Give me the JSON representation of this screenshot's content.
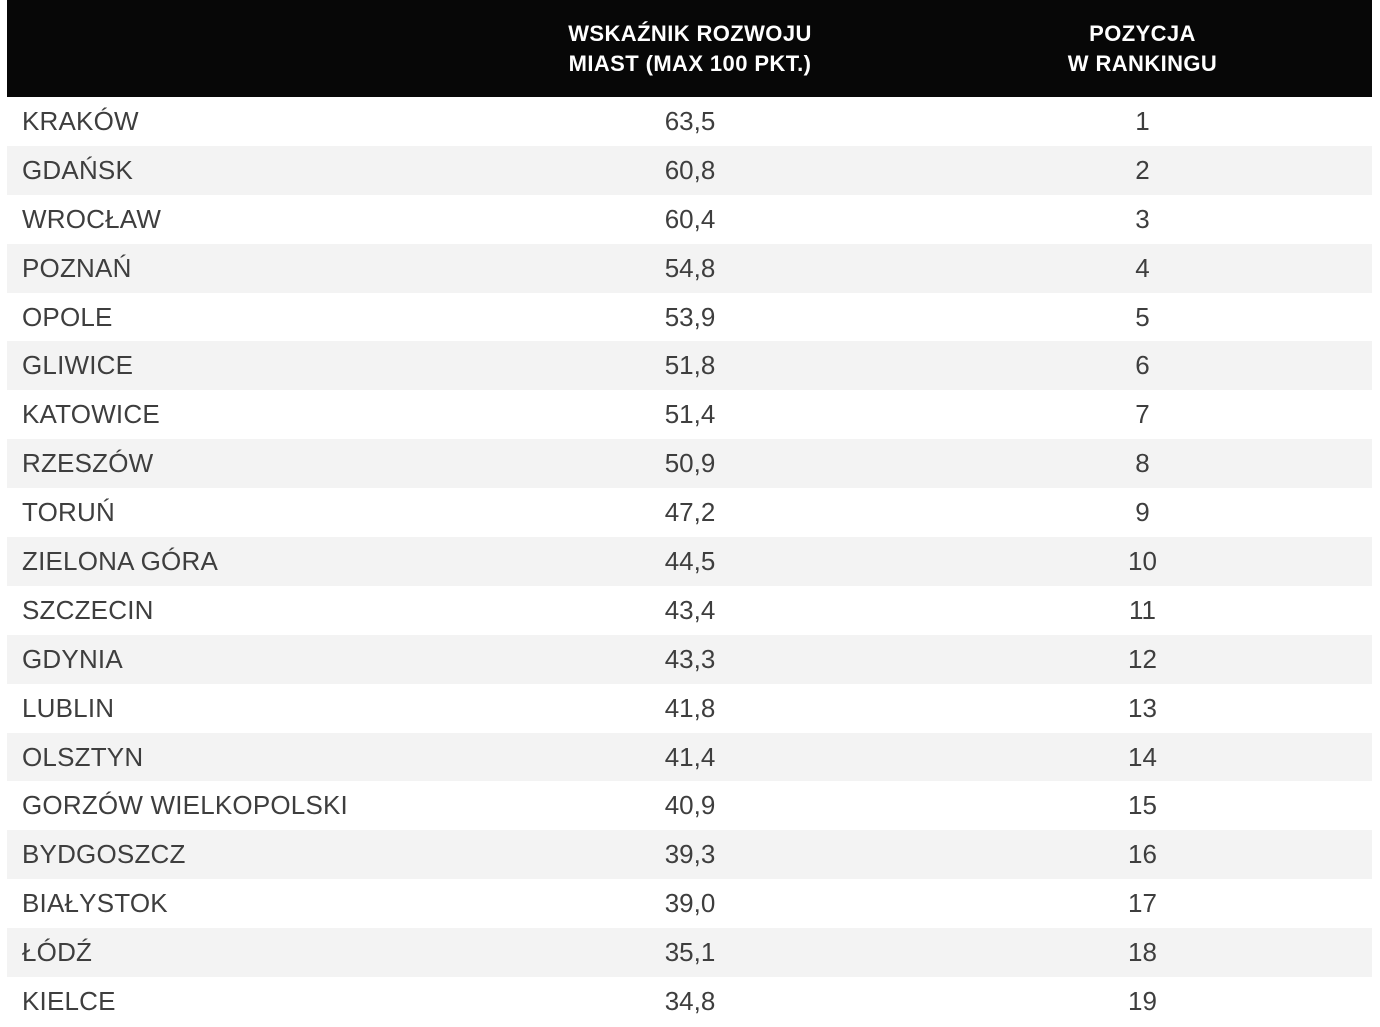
{
  "header": {
    "city_col": "",
    "score_col": {
      "line1": "WSKAŹNIK ROZWOJU",
      "line2": "MIAST (MAX 100 PKT.)"
    },
    "rank_col": {
      "line1": "POZYCJA",
      "line2": "W RANKINGU"
    }
  },
  "chart_data": {
    "type": "table",
    "title": "",
    "columns": [
      "",
      "WSKAŹNIK ROZWOJU MIAST (MAX 100 PKT.)",
      "POZYCJA W RANKINGU"
    ],
    "score_max": 100,
    "rows": [
      {
        "city": "KRAKÓW",
        "score": "63,5",
        "rank": "1"
      },
      {
        "city": "GDAŃSK",
        "score": "60,8",
        "rank": "2"
      },
      {
        "city": "WROCŁAW",
        "score": "60,4",
        "rank": "3"
      },
      {
        "city": "POZNAŃ",
        "score": "54,8",
        "rank": "4"
      },
      {
        "city": "OPOLE",
        "score": "53,9",
        "rank": "5"
      },
      {
        "city": "GLIWICE",
        "score": "51,8",
        "rank": "6"
      },
      {
        "city": "KATOWICE",
        "score": "51,4",
        "rank": "7"
      },
      {
        "city": "RZESZÓW",
        "score": "50,9",
        "rank": "8"
      },
      {
        "city": "TORUŃ",
        "score": "47,2",
        "rank": "9"
      },
      {
        "city": "ZIELONA GÓRA",
        "score": "44,5",
        "rank": "10"
      },
      {
        "city": "SZCZECIN",
        "score": "43,4",
        "rank": "11"
      },
      {
        "city": "GDYNIA",
        "score": "43,3",
        "rank": "12"
      },
      {
        "city": "LUBLIN",
        "score": "41,8",
        "rank": "13"
      },
      {
        "city": "OLSZTYN",
        "score": "41,4",
        "rank": "14"
      },
      {
        "city": "GORZÓW WIELKOPOLSKI",
        "score": "40,9",
        "rank": "15"
      },
      {
        "city": "BYDGOSZCZ",
        "score": "39,3",
        "rank": "16"
      },
      {
        "city": "BIAŁYSTOK",
        "score": "39,0",
        "rank": "17"
      },
      {
        "city": "ŁÓDŹ",
        "score": "35,1",
        "rank": "18"
      },
      {
        "city": "KIELCE",
        "score": "34,8",
        "rank": "19"
      }
    ]
  },
  "colors": {
    "header_bg": "#070707",
    "header_text": "#ffffff",
    "stripe": "#f3f3f3",
    "row_text": "#3e3e3e"
  }
}
